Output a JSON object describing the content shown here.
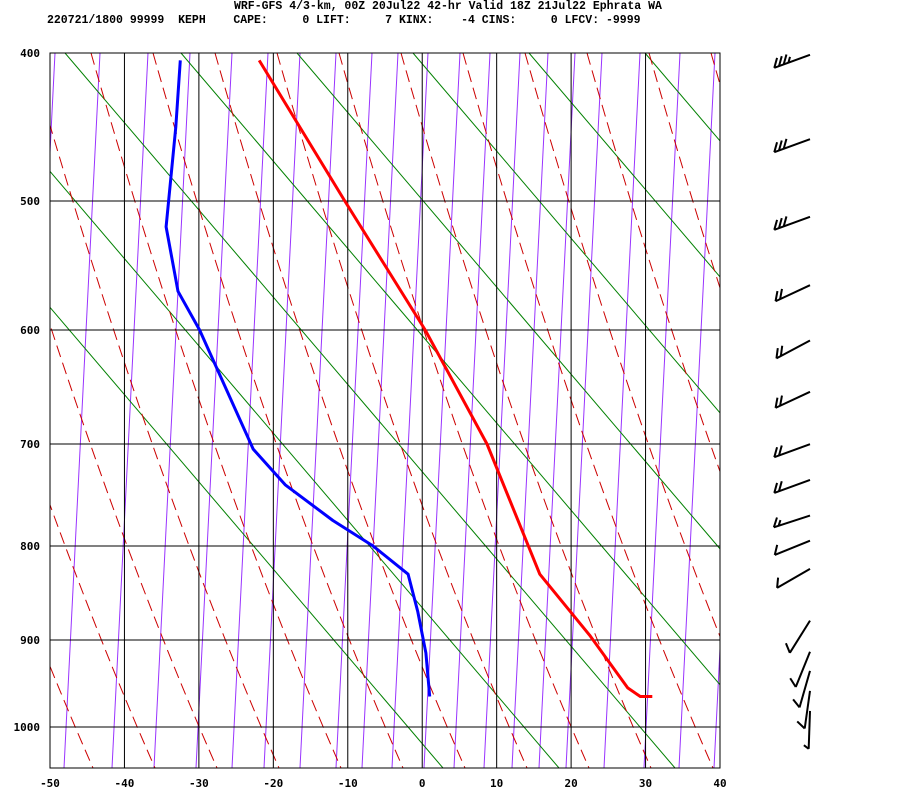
{
  "header": {
    "title": "WRF-GFS 4/3-km, 00Z 20Jul22 42-hr Valid 18Z 21Jul22 Ephrata WA",
    "station_line": "220721/1800 99999  KEPH    CAPE:     0 LIFT:     7 KINX:    -4 CINS:     0 LFCV: -9999"
  },
  "chart_data": {
    "type": "line",
    "subtype": "skew-t sounding",
    "title": "",
    "xlabel": "",
    "ylabel": "",
    "xlim": [
      -50,
      40
    ],
    "ylim": [
      1050,
      400
    ],
    "y_scale": "pressure (log-like, inverted)",
    "grid": true,
    "x_ticks": [
      -50,
      -40,
      -30,
      -20,
      -10,
      0,
      10,
      20,
      30,
      40
    ],
    "y_ticks": [
      400,
      500,
      600,
      700,
      800,
      900,
      1000
    ],
    "colors": {
      "temperature": "#ff0000",
      "dewpoint": "#0000ff",
      "dry_adiabat": "#008000",
      "moist_adiabat": "#cc0000",
      "mixing_line": "#9933ff",
      "grid": "#000000"
    },
    "series": [
      {
        "key": "temperature",
        "points": [
          [
            -21.9,
            405
          ],
          [
            -10.4,
            500
          ],
          [
            0.4,
            600
          ],
          [
            8.7,
            700
          ],
          [
            15.8,
            830
          ],
          [
            22.5,
            895
          ],
          [
            27.6,
            955
          ],
          [
            29.3,
            965
          ],
          [
            30.9,
            965
          ]
        ]
      },
      {
        "key": "dewpoint",
        "points": [
          [
            -32.5,
            405
          ],
          [
            -33.1,
            450
          ],
          [
            -34.4,
            520
          ],
          [
            -32.8,
            570
          ],
          [
            -29.9,
            600
          ],
          [
            -22.7,
            705
          ],
          [
            -18.4,
            740
          ],
          [
            -12.0,
            775
          ],
          [
            -6.6,
            800
          ],
          [
            -1.9,
            830
          ],
          [
            -0.6,
            870
          ],
          [
            0.5,
            915
          ],
          [
            1.0,
            965
          ]
        ]
      }
    ],
    "wind_barbs": [
      {
        "p": 408,
        "dir": 250,
        "spd": 35
      },
      {
        "p": 465,
        "dir": 250,
        "spd": 30
      },
      {
        "p": 520,
        "dir": 250,
        "spd": 30
      },
      {
        "p": 573,
        "dir": 245,
        "spd": 20
      },
      {
        "p": 618,
        "dir": 242,
        "spd": 20
      },
      {
        "p": 663,
        "dir": 245,
        "spd": 20
      },
      {
        "p": 710,
        "dir": 250,
        "spd": 20
      },
      {
        "p": 745,
        "dir": 250,
        "spd": 20
      },
      {
        "p": 780,
        "dir": 252,
        "spd": 15
      },
      {
        "p": 805,
        "dir": 248,
        "spd": 10
      },
      {
        "p": 835,
        "dir": 240,
        "spd": 10
      },
      {
        "p": 890,
        "dir": 212,
        "spd": 10
      },
      {
        "p": 925,
        "dir": 202,
        "spd": 10
      },
      {
        "p": 947,
        "dir": 196,
        "spd": 10
      },
      {
        "p": 970,
        "dir": 188,
        "spd": 10
      },
      {
        "p": 993,
        "dir": 182,
        "spd": 5
      }
    ]
  }
}
